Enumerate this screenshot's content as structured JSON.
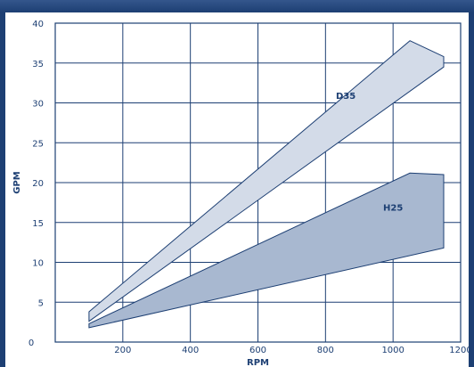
{
  "chart_data": {
    "type": "area",
    "title": "",
    "xlabel": "RPM",
    "ylabel": "GPM",
    "xlim": [
      0,
      1200
    ],
    "ylim": [
      0,
      40
    ],
    "x_ticks": [
      0,
      200,
      400,
      600,
      800,
      1000,
      1200
    ],
    "y_ticks": [
      5,
      10,
      15,
      20,
      25,
      30,
      35,
      40
    ],
    "y_zero_label": "0",
    "grid": true,
    "legend": "none",
    "series": [
      {
        "name": "D35",
        "fill": "#d3dbe8",
        "polygon": [
          [
            100,
            2.6
          ],
          [
            1150,
            34.5
          ],
          [
            1150,
            35.8
          ],
          [
            1050,
            37.8
          ],
          [
            100,
            3.8
          ]
        ],
        "label_at": [
          860,
          30.5
        ]
      },
      {
        "name": "H25",
        "fill": "#a8b8d0",
        "polygon": [
          [
            100,
            1.8
          ],
          [
            1150,
            11.8
          ],
          [
            1150,
            21.0
          ],
          [
            1050,
            21.2
          ],
          [
            100,
            2.3
          ]
        ],
        "label_at": [
          1000,
          16.5
        ]
      }
    ]
  },
  "colors": {
    "frame": "#1d3f73",
    "text": "#1d3f73",
    "line": "#1d3f73"
  }
}
